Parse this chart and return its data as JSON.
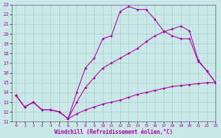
{
  "background_color": "#cbe8e8",
  "grid_color": "#aacccc",
  "line_color": "#aa00aa",
  "xlim": [
    -0.5,
    23
  ],
  "ylim": [
    11,
    23
  ],
  "xticks": [
    0,
    1,
    2,
    3,
    4,
    5,
    6,
    7,
    8,
    9,
    10,
    11,
    12,
    13,
    14,
    15,
    16,
    17,
    18,
    19,
    20,
    21,
    22,
    23
  ],
  "yticks": [
    11,
    12,
    13,
    14,
    15,
    16,
    17,
    18,
    19,
    20,
    21,
    22,
    23
  ],
  "xlabel": "Windchill (Refroidissement éolien,°C)",
  "series": [
    {
      "x": [
        0,
        1,
        2,
        3,
        4,
        5,
        6,
        7,
        8,
        9,
        10,
        11,
        12,
        13,
        14,
        15,
        16,
        17,
        18,
        19,
        20,
        21,
        22,
        23
      ],
      "y": [
        13.7,
        12.5,
        13.0,
        12.2,
        12.2,
        12.0,
        11.3,
        14.0,
        16.5,
        17.5,
        19.5,
        19.8,
        22.3,
        22.8,
        22.5,
        22.5,
        21.5,
        20.3,
        19.8,
        19.5,
        19.5,
        17.2,
        16.2,
        15.0
      ]
    },
    {
      "x": [
        0,
        1,
        2,
        3,
        4,
        5,
        6,
        7,
        8,
        9,
        10,
        11,
        12,
        13,
        14,
        15,
        16,
        17,
        18,
        19,
        20,
        21,
        22,
        23
      ],
      "y": [
        13.7,
        12.5,
        13.0,
        12.2,
        12.2,
        12.0,
        11.3,
        13.0,
        14.5,
        15.5,
        16.5,
        17.0,
        17.5,
        18.0,
        18.5,
        19.2,
        19.8,
        20.2,
        20.5,
        20.8,
        20.3,
        17.3,
        16.2,
        15.0
      ]
    },
    {
      "x": [
        0,
        1,
        2,
        3,
        4,
        5,
        6,
        7,
        8,
        9,
        10,
        11,
        12,
        13,
        14,
        15,
        16,
        17,
        18,
        19,
        20,
        21,
        22,
        23
      ],
      "y": [
        13.7,
        12.5,
        13.0,
        12.2,
        12.2,
        12.0,
        11.3,
        11.8,
        12.2,
        12.5,
        12.8,
        13.0,
        13.2,
        13.5,
        13.8,
        14.0,
        14.2,
        14.4,
        14.6,
        14.7,
        14.8,
        14.9,
        15.0,
        15.0
      ]
    }
  ]
}
